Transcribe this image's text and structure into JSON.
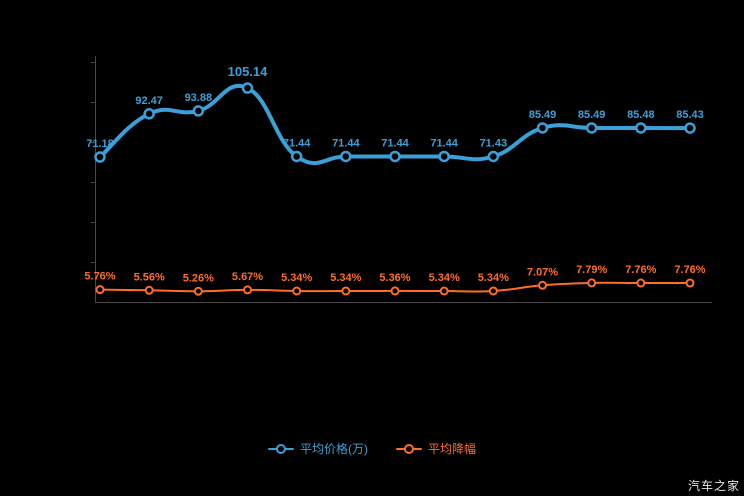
{
  "watermark": "汽车之家",
  "legend": [
    {
      "label": "平均价格(万)",
      "color": "#3ba0d8"
    },
    {
      "label": "平均降幅",
      "color": "#ff6e26"
    }
  ],
  "chart_data": {
    "type": "line",
    "title": "",
    "xlabel": "",
    "ylabel": "",
    "x_tick_labels_visible": false,
    "categories": [
      "1",
      "2",
      "3",
      "4",
      "5",
      "6",
      "7",
      "8",
      "9",
      "10",
      "11",
      "12",
      "13"
    ],
    "axis_color": "#4a4a4a",
    "background": "#000000",
    "legend_position": "bottom",
    "series": [
      {
        "name": "平均价格(万)",
        "color": "#3ba0d8",
        "suffix": "",
        "values": [
          71.18,
          92.47,
          93.88,
          105.14,
          71.44,
          71.44,
          71.44,
          71.44,
          71.43,
          85.49,
          85.49,
          85.48,
          85.43
        ]
      },
      {
        "name": "平均降幅",
        "color": "#ff6e26",
        "suffix": "%",
        "values": [
          5.76,
          5.56,
          5.26,
          5.67,
          5.34,
          5.34,
          5.36,
          5.34,
          5.34,
          7.07,
          7.79,
          7.76,
          7.76
        ]
      }
    ]
  }
}
